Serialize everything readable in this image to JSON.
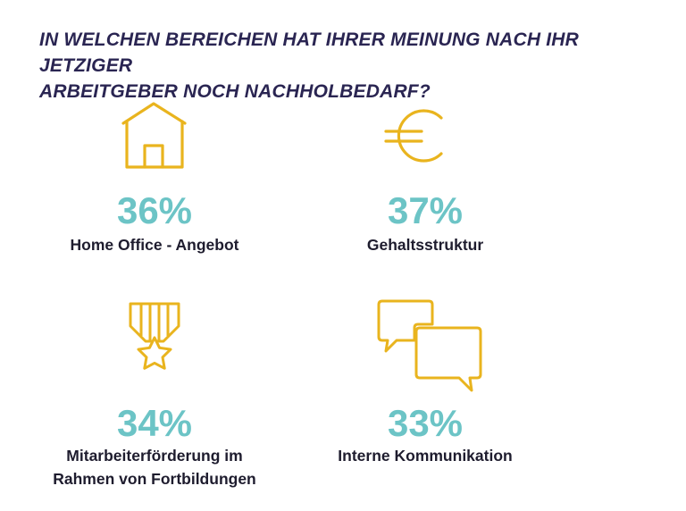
{
  "title": {
    "line1": "IN WELCHEN BEREICHEN HAT IHRER MEINUNG NACH IHR JETZIGER",
    "line2": "ARBEITGEBER NOCH NACHHOLBEDARF?"
  },
  "colors": {
    "title": "#2a2552",
    "percent": "#6cc4c6",
    "icon": "#e9b41e",
    "label": "#1e1c2e"
  },
  "stats": [
    {
      "icon": "house-icon",
      "percent": "36%",
      "label_lines": [
        "Home Office - Angebot"
      ]
    },
    {
      "icon": "euro-icon",
      "percent": "37%",
      "label_lines": [
        "Gehaltsstruktur"
      ]
    },
    {
      "icon": "medal-icon",
      "percent": "34%",
      "label_lines": [
        "Mitarbeiterförderung im",
        "Rahmen von Fortbildungen"
      ]
    },
    {
      "icon": "speech-bubbles-icon",
      "percent": "33%",
      "label_lines": [
        "Interne Kommunikation"
      ]
    }
  ]
}
